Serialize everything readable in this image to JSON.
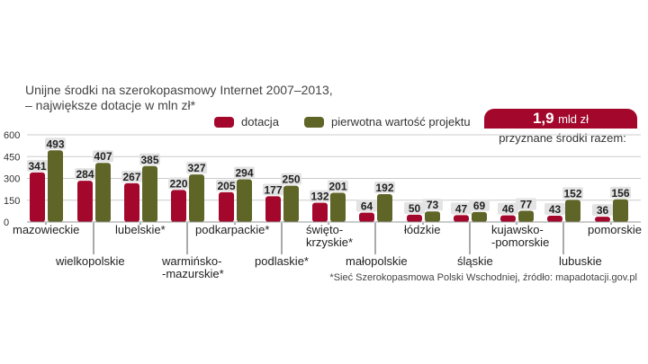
{
  "title_line1": "Unijne środki na szerokopasmowy Internet 2007–2013,",
  "title_line2": "– największe dotacje w mln zł*",
  "legend": {
    "series1": "dotacja",
    "series2": "pierwotna wartość projektu"
  },
  "total": {
    "value": "1,9",
    "unit": "mld zł",
    "label": "przyznane środki razem:"
  },
  "source": "*Sieć Szerokopasmowa Polski Wschodniej, źródło: mapadotacji.gov.pl",
  "colors": {
    "dotacja": "#a3082c",
    "projekt": "#5f6527",
    "label_bg": "#e3e3e3",
    "grid": "#cccccc"
  },
  "chart_data": {
    "type": "bar",
    "categories": [
      "mazowieckie",
      "wielkopolskie",
      "lubelskie*",
      "warmińsko-mazurskie*",
      "podkarpackie*",
      "podlaskie*",
      "świętokrzyskie*",
      "małopolskie",
      "łódzkie",
      "śląskie",
      "kujawsko-pomorskie",
      "lubuskie",
      "pomorskie"
    ],
    "category_labels": [
      [
        "mazowieckie"
      ],
      [
        "wielkopolskie"
      ],
      [
        "lubelskie*"
      ],
      [
        "warmińsko-",
        "-mazurskie*"
      ],
      [
        "podkarpackie*"
      ],
      [
        "podlaskie*"
      ],
      [
        "świętо-",
        "krzyskie*"
      ],
      [
        "małopolskie"
      ],
      [
        "łódzkie"
      ],
      [
        "śląskie"
      ],
      [
        "kujawsko-",
        "-pomorskie"
      ],
      [
        "lubuskie"
      ],
      [
        "pomorskie"
      ]
    ],
    "series": [
      {
        "name": "dotacja",
        "values": [
          341,
          284,
          267,
          220,
          205,
          177,
          132,
          64,
          50,
          47,
          46,
          43,
          36
        ]
      },
      {
        "name": "pierwotna wartość projektu",
        "values": [
          493,
          407,
          385,
          327,
          294,
          250,
          201,
          192,
          73,
          69,
          77,
          152,
          156
        ]
      }
    ],
    "yticks": [
      0,
      150,
      300,
      450,
      600
    ],
    "ylim": [
      0,
      600
    ],
    "grid": true
  }
}
